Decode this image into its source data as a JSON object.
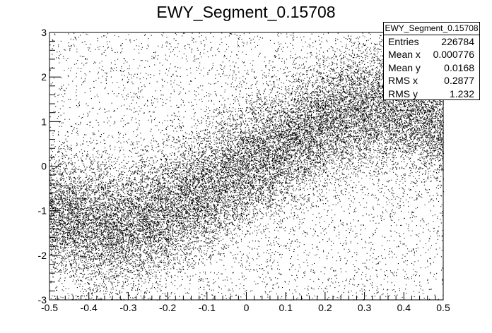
{
  "title": "EWY_Segment_0.15708",
  "stats": {
    "name": "EWY_Segment_0.15708",
    "rows": [
      {
        "label": "Entries",
        "value": "226784"
      },
      {
        "label": "Mean x",
        "value": "0.000776"
      },
      {
        "label": "Mean y",
        "value": "0.0168"
      },
      {
        "label": "RMS x",
        "value": "0.2877"
      },
      {
        "label": "RMS y",
        "value": "1.232"
      }
    ]
  },
  "chart_data": {
    "type": "scatter",
    "title": "EWY_Segment_0.15708",
    "xlabel": "",
    "ylabel": "",
    "xlim": [
      -0.5,
      0.5
    ],
    "ylim": [
      -3,
      3
    ],
    "xticks": [
      "-0.5",
      "-0.4",
      "-0.3",
      "-0.2",
      "-0.1",
      "0",
      "0.1",
      "0.2",
      "0.3",
      "0.4",
      "0.5"
    ],
    "yticks": [
      "-3",
      "-2",
      "-1",
      "0",
      "1",
      "2",
      "3"
    ],
    "grid": false,
    "legend": "top-right statistics box",
    "entries": 226784,
    "mean_x": 0.000776,
    "mean_y": 0.0168,
    "rms_x": 0.2877,
    "rms_y": 1.232,
    "band_centerline": {
      "x": [
        -0.5,
        -0.4,
        -0.3,
        -0.2,
        -0.1,
        0.0,
        0.1,
        0.2,
        0.3,
        0.4,
        0.5
      ],
      "y": [
        -1.0,
        -1.3,
        -1.3,
        -1.0,
        -0.5,
        0.0,
        0.5,
        1.0,
        1.3,
        1.3,
        1.0
      ]
    },
    "band_half_width": 0.7
  }
}
